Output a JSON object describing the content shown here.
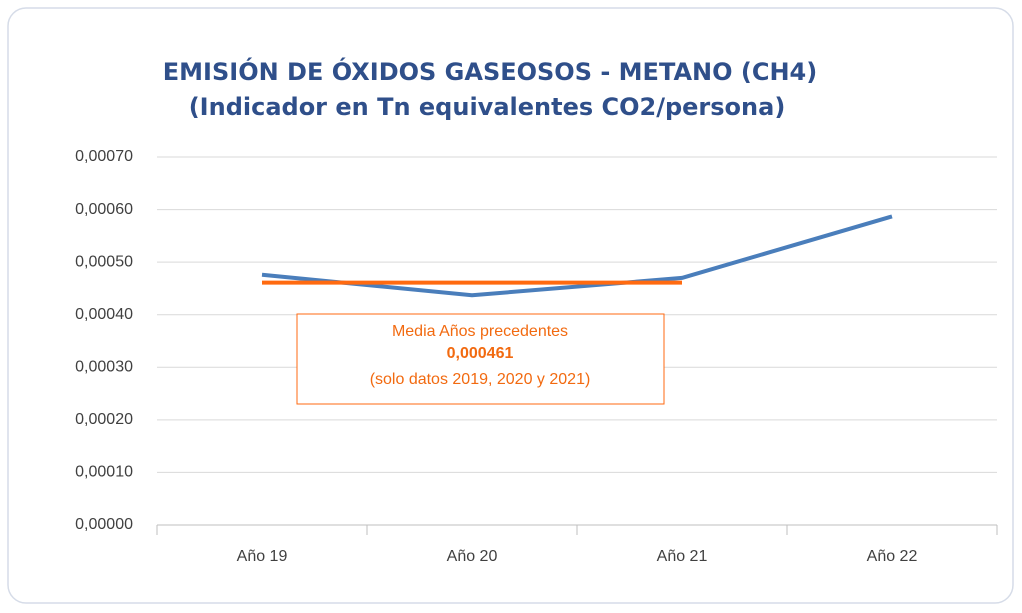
{
  "chart_data": {
    "type": "line",
    "title": "EMISIÓN DE ÓXIDOS GASEOSOS - METANO (CH4)",
    "subtitle": "(Indicador en Tn equivalentes CO2/persona)",
    "categories": [
      "Año 19",
      "Año 20",
      "Año 21",
      "Año 22"
    ],
    "series": [
      {
        "color": "#4a7ebb",
        "values": [
          0.000476,
          0.000437,
          0.00047,
          0.000587
        ]
      },
      {
        "color": "#ff6a10",
        "values": [
          0.000461,
          0.000461,
          0.000461,
          null
        ]
      }
    ],
    "ylim": [
      0,
      0.0007
    ],
    "yticks": [
      {
        "value": 0,
        "label": "0,00000"
      },
      {
        "value": 0.0001,
        "label": "0,00010"
      },
      {
        "value": 0.0002,
        "label": "0,00020"
      },
      {
        "value": 0.0003,
        "label": "0,00030"
      },
      {
        "value": 0.0004,
        "label": "0,00040"
      },
      {
        "value": 0.0005,
        "label": "0,00050"
      },
      {
        "value": 0.0006,
        "label": "0,00060"
      },
      {
        "value": 0.0007,
        "label": "0,00070"
      }
    ],
    "grid": true,
    "annotation": {
      "lines": [
        "Media Años precedentes",
        "0,000461",
        "(solo datos 2019, 2020 y 2021)"
      ]
    }
  }
}
